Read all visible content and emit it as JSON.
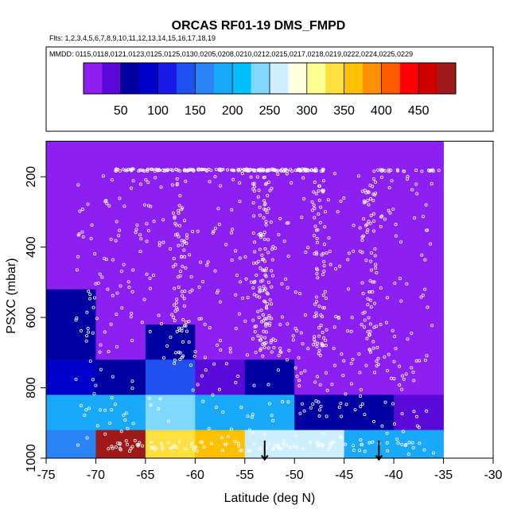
{
  "title": "ORCAS RF01-19 DMS_FMPD",
  "flights_line": "Flts: 1,2,3,4,5,6,7,8,9,10,11,12,13,14,15,16,17,18,19",
  "dates_line": "MMDD: 0115,0118,0121,0123,0125,0125,0130,0205,0208,0210,0212,0215,0217,0218,0219,0222,0224,0225,0229",
  "colorbar": {
    "labels": [
      "50",
      "100",
      "150",
      "200",
      "250",
      "300",
      "350",
      "400",
      "450"
    ],
    "bins": [
      0,
      25,
      50,
      75,
      100,
      125,
      150,
      175,
      200,
      225,
      250,
      275,
      300,
      325,
      350,
      375,
      400,
      425,
      450,
      475,
      500
    ],
    "colors": [
      "#8b20f0",
      "#5a0ad8",
      "#0000a0",
      "#0000cc",
      "#1818e8",
      "#2050f0",
      "#2a84f4",
      "#1aa8f8",
      "#00bfff",
      "#80d8ff",
      "#cceeff",
      "#ffffe0",
      "#ffff90",
      "#ffe040",
      "#ffc000",
      "#ff9000",
      "#ff5a00",
      "#ff0000",
      "#d00000",
      "#9e1a1a"
    ]
  },
  "chart_data": {
    "type": "heatmap",
    "xlabel": "Latitude (deg N)",
    "ylabel": "PSXC (mbar)",
    "xlim": [
      -75,
      -30
    ],
    "ylim": [
      1000,
      100
    ],
    "xticks": [
      -75,
      -70,
      -65,
      -60,
      -55,
      -50,
      -45,
      -40,
      -35,
      -30
    ],
    "yticks": [
      200,
      400,
      600,
      800,
      1000
    ],
    "x_bin_edges": [
      -75,
      -70,
      -65,
      -60,
      -55,
      -50,
      -45,
      -40,
      -35,
      -30
    ],
    "y_bin_edges": [
      100,
      175,
      400,
      520,
      620,
      720,
      820,
      920,
      1000
    ],
    "cells_dms_pptv": [
      [
        0,
        0,
        0,
        0,
        0,
        0,
        0,
        0,
        null
      ],
      [
        0,
        0,
        0,
        0,
        0,
        0,
        0,
        0,
        null
      ],
      [
        15,
        5,
        0,
        0,
        0,
        0,
        0,
        0,
        null
      ],
      [
        60,
        5,
        5,
        0,
        0,
        0,
        0,
        0,
        null
      ],
      [
        60,
        5,
        60,
        10,
        10,
        0,
        0,
        0,
        null
      ],
      [
        85,
        60,
        140,
        40,
        60,
        20,
        10,
        10,
        null
      ],
      [
        190,
        190,
        245,
        195,
        190,
        65,
        55,
        40,
        null
      ],
      [
        165,
        480,
        330,
        365,
        260,
        255,
        195,
        190,
        null
      ]
    ],
    "arrows_latitude": [
      -53,
      -41.5
    ]
  }
}
